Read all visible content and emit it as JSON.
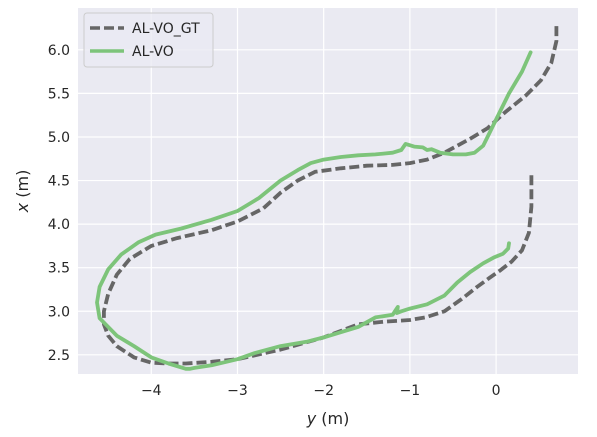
{
  "chart_data": {
    "type": "line",
    "title": "",
    "xlabel": {
      "var": "y",
      "unit": " (m)"
    },
    "ylabel": {
      "var": "x",
      "unit": " (m)"
    },
    "xlim": [
      -4.85,
      0.95
    ],
    "ylim": [
      2.28,
      6.48
    ],
    "xticks": [
      {
        "value": -4,
        "label": "−4"
      },
      {
        "value": -3,
        "label": "−3"
      },
      {
        "value": -2,
        "label": "−2"
      },
      {
        "value": -1,
        "label": "−1"
      },
      {
        "value": 0,
        "label": "0"
      }
    ],
    "yticks": [
      {
        "value": 2.5,
        "label": "2.5"
      },
      {
        "value": 3.0,
        "label": "3.0"
      },
      {
        "value": 3.5,
        "label": "3.5"
      },
      {
        "value": 4.0,
        "label": "4.0"
      },
      {
        "value": 4.5,
        "label": "4.5"
      },
      {
        "value": 5.0,
        "label": "5.0"
      },
      {
        "value": 5.5,
        "label": "5.5"
      },
      {
        "value": 6.0,
        "label": "6.0"
      }
    ],
    "grid": true,
    "legend_position": "top-left",
    "background": "#eaeaf2",
    "series": [
      {
        "name": "AL-VO_GT",
        "color": "#666666",
        "dash": "dashed",
        "x": [
          0.41,
          0.41,
          0.38,
          0.3,
          0.18,
          0.05,
          -0.08,
          -0.22,
          -0.4,
          -0.6,
          -0.82,
          -1.0,
          -1.3,
          -1.6,
          -2.0,
          -2.5,
          -3.0,
          -3.3,
          -3.6,
          -3.8,
          -4.0,
          -4.2,
          -4.4,
          -4.5,
          -4.55,
          -4.55,
          -4.5,
          -4.4,
          -4.25,
          -4.0,
          -3.7,
          -3.3,
          -3.0,
          -2.7,
          -2.5,
          -2.3,
          -2.1,
          -1.8,
          -1.5,
          -1.2,
          -1.0,
          -0.8,
          -0.6,
          -0.45,
          -0.3,
          -0.1,
          0.1,
          0.35,
          0.52,
          0.64,
          0.7,
          0.7
        ],
        "y": [
          4.56,
          4.2,
          3.9,
          3.7,
          3.57,
          3.47,
          3.38,
          3.28,
          3.14,
          3.0,
          2.93,
          2.9,
          2.88,
          2.85,
          2.7,
          2.56,
          2.45,
          2.42,
          2.4,
          2.4,
          2.41,
          2.47,
          2.6,
          2.72,
          2.85,
          3.0,
          3.2,
          3.42,
          3.6,
          3.75,
          3.84,
          3.93,
          4.03,
          4.18,
          4.36,
          4.5,
          4.6,
          4.64,
          4.67,
          4.68,
          4.7,
          4.74,
          4.82,
          4.9,
          4.98,
          5.1,
          5.28,
          5.48,
          5.65,
          5.85,
          6.1,
          6.3
        ]
      },
      {
        "name": "AL-VO",
        "color": "#7dc47a",
        "dash": "solid",
        "x": [
          0.15,
          0.14,
          0.08,
          -0.02,
          -0.15,
          -0.3,
          -0.45,
          -0.6,
          -0.8,
          -1.0,
          -1.1,
          -1.15,
          -1.14,
          -1.2,
          -1.4,
          -1.6,
          -1.8,
          -2.0,
          -2.2,
          -2.5,
          -2.8,
          -3.0,
          -3.3,
          -3.5,
          -3.55,
          -3.6,
          -3.8,
          -4.0,
          -4.2,
          -4.4,
          -4.6,
          -4.63,
          -4.6,
          -4.5,
          -4.35,
          -4.15,
          -3.95,
          -3.65,
          -3.3,
          -3.0,
          -2.75,
          -2.5,
          -2.3,
          -2.15,
          -2.0,
          -1.8,
          -1.6,
          -1.4,
          -1.2,
          -1.1,
          -1.05,
          -0.95,
          -0.85,
          -0.8,
          -0.75,
          -0.65,
          -0.5,
          -0.35,
          -0.25,
          -0.15,
          -0.1,
          0.0,
          0.15,
          0.3,
          0.4
        ],
        "y": [
          3.78,
          3.72,
          3.66,
          3.62,
          3.55,
          3.45,
          3.33,
          3.18,
          3.08,
          3.03,
          3.0,
          2.98,
          3.05,
          2.96,
          2.93,
          2.82,
          2.76,
          2.7,
          2.65,
          2.6,
          2.52,
          2.45,
          2.38,
          2.35,
          2.34,
          2.34,
          2.4,
          2.47,
          2.6,
          2.72,
          2.92,
          3.1,
          3.28,
          3.48,
          3.65,
          3.79,
          3.88,
          3.95,
          4.05,
          4.15,
          4.3,
          4.5,
          4.62,
          4.7,
          4.74,
          4.77,
          4.79,
          4.8,
          4.82,
          4.85,
          4.92,
          4.89,
          4.88,
          4.85,
          4.86,
          4.82,
          4.8,
          4.8,
          4.82,
          4.9,
          5.0,
          5.2,
          5.5,
          5.75,
          5.97
        ]
      }
    ]
  }
}
